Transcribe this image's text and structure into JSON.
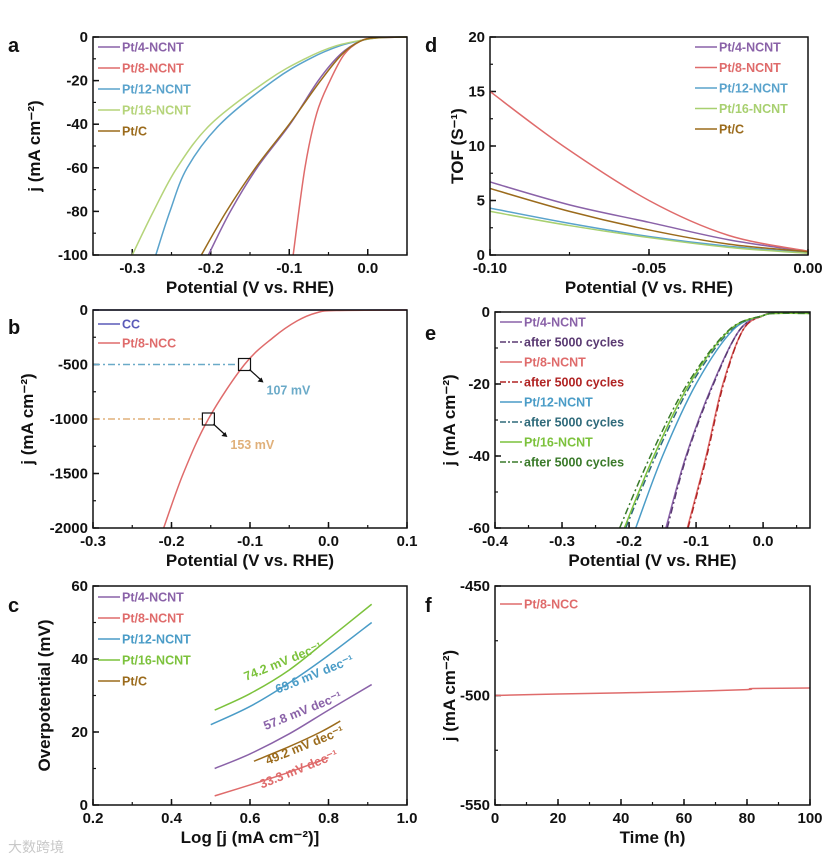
{
  "watermark": "大数跨境",
  "chart_data": [
    {
      "panel": "a",
      "type": "line",
      "xlabel": "Potential (V vs. RHE)",
      "ylabel": "j (mA cm⁻²)",
      "xlim": [
        -0.35,
        0.05
      ],
      "ylim": [
        -100,
        0
      ],
      "xticks": [
        -0.3,
        -0.2,
        -0.1,
        0.0
      ],
      "xtick_labels": [
        "-0.3",
        "-0.2",
        "-0.1",
        "0.0"
      ],
      "xminor": 0.05,
      "yticks": [
        0,
        -20,
        -40,
        -60,
        -80,
        -100
      ],
      "ytick_labels": [
        "0",
        "-20",
        "-40",
        "-60",
        "-80",
        "-100"
      ],
      "yminor": 10,
      "legend_position": "top-left",
      "series": [
        {
          "name": "Pt/4-NCNT",
          "color": "#8a62a8",
          "points": [
            [
              -0.203,
              -100
            ],
            [
              -0.175,
              -80
            ],
            [
              -0.141,
              -60
            ],
            [
              -0.099,
              -40
            ],
            [
              -0.063,
              -20
            ],
            [
              -0.035,
              -8
            ],
            [
              -0.01,
              -2
            ],
            [
              0.01,
              -0.4
            ],
            [
              0.05,
              0
            ]
          ]
        },
        {
          "name": "Pt/8-NCNT",
          "color": "#df6b6b",
          "points": [
            [
              -0.095,
              -100
            ],
            [
              -0.08,
              -60
            ],
            [
              -0.065,
              -35
            ],
            [
              -0.048,
              -20
            ],
            [
              -0.03,
              -8
            ],
            [
              -0.01,
              -2
            ],
            [
              0.01,
              -0.3
            ],
            [
              0.05,
              0
            ]
          ]
        },
        {
          "name": "Pt/12-NCNT",
          "color": "#5aa3cc",
          "points": [
            [
              -0.27,
              -100
            ],
            [
              -0.252,
              -80
            ],
            [
              -0.23,
              -60
            ],
            [
              -0.188,
              -40
            ],
            [
              -0.12,
              -20
            ],
            [
              -0.074,
              -10
            ],
            [
              -0.035,
              -4
            ],
            [
              0.0,
              -1
            ],
            [
              0.02,
              -0.2
            ],
            [
              0.05,
              0
            ]
          ]
        },
        {
          "name": "Pt/16-NCNT",
          "color": "#b5d47a",
          "points": [
            [
              -0.3,
              -100
            ],
            [
              -0.273,
              -80
            ],
            [
              -0.243,
              -60
            ],
            [
              -0.2,
              -40
            ],
            [
              -0.128,
              -20
            ],
            [
              -0.08,
              -10
            ],
            [
              -0.04,
              -4
            ],
            [
              0.0,
              -1
            ],
            [
              0.02,
              -0.2
            ],
            [
              0.05,
              0
            ]
          ]
        },
        {
          "name": "Pt/C",
          "color": "#9b6b1c",
          "points": [
            [
              -0.212,
              -100
            ],
            [
              -0.18,
              -80
            ],
            [
              -0.143,
              -60
            ],
            [
              -0.1,
              -40
            ],
            [
              -0.06,
              -20
            ],
            [
              -0.033,
              -8
            ],
            [
              -0.01,
              -2
            ],
            [
              0.01,
              -0.4
            ],
            [
              0.05,
              0
            ]
          ]
        }
      ]
    },
    {
      "panel": "d",
      "type": "line",
      "xlabel": "Potential (V vs. RHE)",
      "ylabel": "TOF (S⁻¹)",
      "xlim": [
        -0.1,
        0.0
      ],
      "ylim": [
        0,
        20
      ],
      "xticks": [
        -0.1,
        -0.05,
        0.0
      ],
      "xtick_labels": [
        "-0.10",
        "-0.05",
        "0.00"
      ],
      "xminor": 0.025,
      "yticks": [
        0,
        5,
        10,
        15,
        20
      ],
      "ytick_labels": [
        "0",
        "5",
        "10",
        "15",
        "20"
      ],
      "yminor": 2.5,
      "legend_position": "top-right",
      "series": [
        {
          "name": "Pt/4-NCNT",
          "color": "#8a62a8",
          "points": [
            [
              -0.1,
              6.7
            ],
            [
              -0.075,
              4.6
            ],
            [
              -0.05,
              3.0
            ],
            [
              -0.025,
              1.4
            ],
            [
              0.0,
              0.3
            ]
          ]
        },
        {
          "name": "Pt/8-NCNT",
          "color": "#df6b6b",
          "points": [
            [
              -0.1,
              15.0
            ],
            [
              -0.077,
              10.0
            ],
            [
              -0.05,
              5.0
            ],
            [
              -0.025,
              1.8
            ],
            [
              0.0,
              0.35
            ]
          ]
        },
        {
          "name": "Pt/12-NCNT",
          "color": "#5aa3cc",
          "points": [
            [
              -0.1,
              4.3
            ],
            [
              -0.075,
              2.9
            ],
            [
              -0.05,
              1.7
            ],
            [
              -0.025,
              0.8
            ],
            [
              0.0,
              0.2
            ]
          ]
        },
        {
          "name": "Pt/16-NCNT",
          "color": "#a8d070",
          "points": [
            [
              -0.1,
              4.0
            ],
            [
              -0.075,
              2.7
            ],
            [
              -0.05,
              1.6
            ],
            [
              -0.025,
              0.7
            ],
            [
              0.0,
              0.15
            ]
          ]
        },
        {
          "name": "Pt/C",
          "color": "#9b6b1c",
          "points": [
            [
              -0.1,
              6.1
            ],
            [
              -0.075,
              4.0
            ],
            [
              -0.05,
              2.3
            ],
            [
              -0.025,
              1.0
            ],
            [
              0.0,
              0.3
            ]
          ]
        }
      ]
    },
    {
      "panel": "b",
      "type": "line",
      "xlabel": "Potential (V vs. RHE)",
      "ylabel": "j (mA cm⁻²)",
      "xlim": [
        -0.3,
        0.1
      ],
      "ylim": [
        -2000,
        0
      ],
      "xticks": [
        -0.3,
        -0.2,
        -0.1,
        0.0,
        0.1
      ],
      "xtick_labels": [
        "-0.3",
        "-0.2",
        "-0.1",
        "0.0",
        "0.1"
      ],
      "xminor": 0.05,
      "yticks": [
        0,
        -500,
        -1000,
        -1500,
        -2000
      ],
      "ytick_labels": [
        "0",
        "-500",
        "-1000",
        "-1500",
        "-2000"
      ],
      "yminor": 250,
      "legend_position": "top-left",
      "series": [
        {
          "name": "CC",
          "color": "#5a5ab8",
          "points": [
            [
              -0.3,
              0
            ],
            [
              0.1,
              0
            ]
          ]
        },
        {
          "name": "Pt/8-NCC",
          "color": "#df6b6b",
          "points": [
            [
              -0.21,
              -2000
            ],
            [
              -0.185,
              -1500
            ],
            [
              -0.153,
              -1000
            ],
            [
              -0.107,
              -500
            ],
            [
              -0.07,
              -250
            ],
            [
              -0.04,
              -100
            ],
            [
              -0.015,
              -25
            ],
            [
              0.01,
              -5
            ],
            [
              0.1,
              0
            ]
          ]
        }
      ],
      "markers": [
        {
          "x": -0.107,
          "y": -500,
          "label": "107 mV",
          "color": "#6aaac8"
        },
        {
          "x": -0.153,
          "y": -1000,
          "label": "153 mV",
          "color": "#e0b07a"
        }
      ]
    },
    {
      "panel": "e",
      "type": "line",
      "xlabel": "Potential (V vs. RHE)",
      "ylabel": "j (mA cm⁻²)",
      "xlim": [
        -0.4,
        0.07
      ],
      "ylim": [
        -60,
        0
      ],
      "xticks": [
        -0.4,
        -0.3,
        -0.2,
        -0.1,
        0.0
      ],
      "xtick_labels": [
        "-0.4",
        "-0.3",
        "-0.2",
        "-0.1",
        "0.0"
      ],
      "xminor": 0.05,
      "yticks": [
        0,
        -20,
        -40,
        -60
      ],
      "ytick_labels": [
        "0",
        "-20",
        "-40",
        "-60"
      ],
      "yminor": 10,
      "legend_position": "top-left",
      "series": [
        {
          "name": "Pt/4-NCNT",
          "color": "#8a62a8",
          "style": "solid",
          "points": [
            [
              -0.145,
              -60
            ],
            [
              -0.115,
              -40
            ],
            [
              -0.075,
              -20
            ],
            [
              -0.035,
              -5
            ],
            [
              0.0,
              -1
            ],
            [
              0.02,
              -0.3
            ],
            [
              0.07,
              -0.2
            ]
          ]
        },
        {
          "name": "after 5000 cycles",
          "color": "#5a3a72",
          "style": "dashdot",
          "points": [
            [
              -0.143,
              -60
            ],
            [
              -0.114,
              -40
            ],
            [
              -0.074,
              -20
            ],
            [
              -0.035,
              -5
            ],
            [
              0.0,
              -1
            ],
            [
              0.02,
              -0.3
            ],
            [
              0.07,
              -0.2
            ]
          ]
        },
        {
          "name": "Pt/8-NCNT",
          "color": "#df6b6b",
          "style": "solid",
          "points": [
            [
              -0.113,
              -60
            ],
            [
              -0.085,
              -40
            ],
            [
              -0.06,
              -20
            ],
            [
              -0.03,
              -5
            ],
            [
              0.0,
              -1
            ],
            [
              0.02,
              -0.3
            ],
            [
              0.07,
              -0.2
            ]
          ]
        },
        {
          "name": "after 5000 cycles",
          "color": "#b02424",
          "style": "dashdot",
          "points": [
            [
              -0.112,
              -60
            ],
            [
              -0.084,
              -40
            ],
            [
              -0.059,
              -20
            ],
            [
              -0.03,
              -5
            ],
            [
              0.0,
              -1
            ],
            [
              0.02,
              -0.3
            ],
            [
              0.07,
              -0.2
            ]
          ]
        },
        {
          "name": "Pt/12-NCNT",
          "color": "#4a9cc7",
          "style": "solid",
          "points": [
            [
              -0.19,
              -60
            ],
            [
              -0.15,
              -40
            ],
            [
              -0.1,
              -20
            ],
            [
              -0.045,
              -5
            ],
            [
              0.0,
              -1
            ],
            [
              0.02,
              -0.3
            ],
            [
              0.07,
              -0.3
            ]
          ]
        },
        {
          "name": "after 5000 cycles",
          "color": "#2f6a7a",
          "style": "dashdot",
          "points": [
            [
              -0.205,
              -60
            ],
            [
              -0.16,
              -40
            ],
            [
              -0.107,
              -20
            ],
            [
              -0.048,
              -5
            ],
            [
              0.0,
              -1
            ],
            [
              0.02,
              -0.3
            ],
            [
              0.07,
              -0.3
            ]
          ]
        },
        {
          "name": "Pt/16-NCNT",
          "color": "#7cc23c",
          "style": "solid",
          "points": [
            [
              -0.207,
              -60
            ],
            [
              -0.163,
              -40
            ],
            [
              -0.11,
              -20
            ],
            [
              -0.05,
              -5
            ],
            [
              0.0,
              -1
            ],
            [
              0.02,
              -0.4
            ],
            [
              0.07,
              -0.4
            ]
          ]
        },
        {
          "name": "after 5000 cycles",
          "color": "#3a7a2a",
          "style": "dashdot",
          "points": [
            [
              -0.214,
              -60
            ],
            [
              -0.168,
              -40
            ],
            [
              -0.113,
              -20
            ],
            [
              -0.051,
              -5
            ],
            [
              0.0,
              -1
            ],
            [
              0.02,
              -0.4
            ],
            [
              0.07,
              -0.4
            ]
          ]
        }
      ]
    },
    {
      "panel": "c",
      "type": "line",
      "xlabel": "Log [j (mA cm⁻²)]",
      "ylabel": "Overpotential (mV)",
      "xlim": [
        0.2,
        1.0
      ],
      "ylim": [
        0,
        60
      ],
      "xticks": [
        0.2,
        0.4,
        0.6,
        0.8,
        1.0
      ],
      "xtick_labels": [
        "0.2",
        "0.4",
        "0.6",
        "0.8",
        "1.0"
      ],
      "xminor": 0.1,
      "yticks": [
        0,
        20,
        40,
        60
      ],
      "ytick_labels": [
        "0",
        "20",
        "40",
        "60"
      ],
      "yminor": 10,
      "legend_position": "top-left",
      "series": [
        {
          "name": "Pt/4-NCNT",
          "color": "#8a62a8",
          "points": [
            [
              0.51,
              10
            ],
            [
              0.6,
              14
            ],
            [
              0.7,
              19.5
            ],
            [
              0.8,
              26
            ],
            [
              0.91,
              33
            ]
          ],
          "annotation": {
            "text": "57.8 mV dec⁻¹",
            "at": [
              0.64,
              20.5
            ]
          }
        },
        {
          "name": "Pt/8-NCNT",
          "color": "#df6b6b",
          "points": [
            [
              0.51,
              2.5
            ],
            [
              0.6,
              5.5
            ],
            [
              0.7,
              9
            ],
            [
              0.8,
              13
            ]
          ],
          "annotation": {
            "text": "33.3 mV dec⁻¹",
            "at": [
              0.63,
              4.5
            ]
          }
        },
        {
          "name": "Pt/12-NCNT",
          "color": "#4a9cc7",
          "points": [
            [
              0.5,
              22
            ],
            [
              0.6,
              27
            ],
            [
              0.7,
              33.5
            ],
            [
              0.8,
              41
            ],
            [
              0.91,
              50
            ]
          ],
          "annotation": {
            "text": "69.6 mV dec⁻¹",
            "at": [
              0.67,
              30.5
            ]
          }
        },
        {
          "name": "Pt/16-NCNT",
          "color": "#7cc23c",
          "points": [
            [
              0.51,
              26
            ],
            [
              0.6,
              30.5
            ],
            [
              0.7,
              37
            ],
            [
              0.8,
              45.5
            ],
            [
              0.91,
              55
            ]
          ],
          "annotation": {
            "text": "74.2 mV dec⁻¹",
            "at": [
              0.59,
              34
            ]
          }
        },
        {
          "name": "Pt/C",
          "color": "#9b6b1c",
          "points": [
            [
              0.61,
              12
            ],
            [
              0.7,
              16
            ],
            [
              0.78,
              20
            ],
            [
              0.83,
              23
            ]
          ],
          "annotation": {
            "text": "49.2 mV dec⁻¹",
            "at": [
              0.645,
              11
            ]
          }
        }
      ]
    },
    {
      "panel": "f",
      "type": "line",
      "xlabel": "Time (h)",
      "ylabel": "j (mA cm⁻²)",
      "xlim": [
        0,
        100
      ],
      "ylim": [
        -550,
        -450
      ],
      "xticks": [
        0,
        20,
        40,
        60,
        80,
        100
      ],
      "xtick_labels": [
        "0",
        "20",
        "40",
        "60",
        "80",
        "100"
      ],
      "xminor": 10,
      "yticks": [
        -450,
        -500,
        -550
      ],
      "ytick_labels": [
        "-450",
        "-500",
        "-550"
      ],
      "yminor": 25,
      "legend_position": "top-left",
      "series": [
        {
          "name": "Pt/8-NCC",
          "color": "#df6b6b",
          "points": [
            [
              0,
              -500
            ],
            [
              20,
              -499.3
            ],
            [
              40,
              -498.8
            ],
            [
              60,
              -498.2
            ],
            [
              80,
              -497.3
            ],
            [
              82,
              -496.8
            ],
            [
              100,
              -496.6
            ]
          ]
        }
      ]
    }
  ]
}
